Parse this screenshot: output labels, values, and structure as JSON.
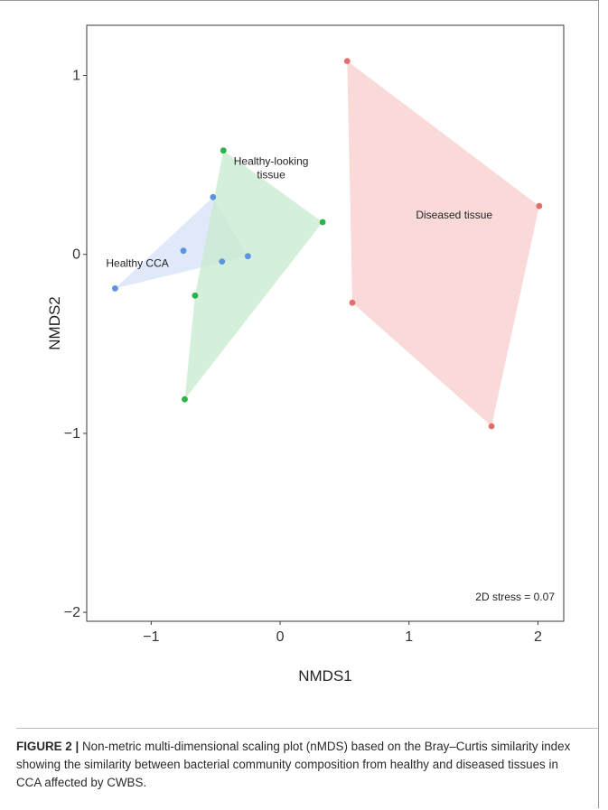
{
  "chart_data": {
    "type": "scatter",
    "xlabel": "NMDS1",
    "ylabel": "NMDS2",
    "xlim": [
      -1.5,
      2.2
    ],
    "ylim": [
      -2.05,
      1.28
    ],
    "xticks": [
      -1,
      0,
      1,
      2
    ],
    "yticks": [
      -2,
      -1,
      0,
      1
    ],
    "xtick_labels": [
      "−1",
      "0",
      "1",
      "2"
    ],
    "ytick_labels": [
      "−2",
      "−1",
      "0",
      "1"
    ],
    "grid": false,
    "legend": "none",
    "annotation": "2D stress = 0.07",
    "groups": [
      {
        "name": "Healthy CCA",
        "color": "#5b93e0",
        "hull_fill": "#d6e3f8",
        "points": [
          [
            -1.28,
            -0.19
          ],
          [
            -0.75,
            0.02
          ],
          [
            -0.52,
            0.32
          ],
          [
            -0.45,
            -0.04
          ],
          [
            -0.25,
            -0.01
          ]
        ],
        "hull": [
          [
            -1.28,
            -0.19
          ],
          [
            -0.52,
            0.32
          ],
          [
            -0.25,
            -0.01
          ]
        ]
      },
      {
        "name": "Healthy-looking tissue",
        "color": "#2bb34a",
        "hull_fill": "#c9ecd0",
        "points": [
          [
            -0.44,
            0.58
          ],
          [
            0.33,
            0.18
          ],
          [
            -0.66,
            -0.23
          ],
          [
            -0.74,
            -0.81
          ]
        ],
        "hull": [
          [
            -0.44,
            0.58
          ],
          [
            0.33,
            0.18
          ],
          [
            -0.74,
            -0.81
          ],
          [
            -0.66,
            -0.23
          ]
        ]
      },
      {
        "name": "Diseased tissue",
        "color": "#e46e6a",
        "hull_fill": "#f8d0ce",
        "points": [
          [
            0.52,
            1.08
          ],
          [
            2.01,
            0.27
          ],
          [
            0.56,
            -0.27
          ],
          [
            1.64,
            -0.96
          ]
        ],
        "hull": [
          [
            0.52,
            1.08
          ],
          [
            2.01,
            0.27
          ],
          [
            1.64,
            -0.96
          ],
          [
            0.56,
            -0.27
          ]
        ]
      }
    ],
    "group_labels": [
      {
        "text": "Healthy CCA",
        "anchor": "start",
        "x": -1.35,
        "y": -0.07,
        "lines": [
          "Healthy CCA"
        ]
      },
      {
        "text": "Healthy-looking tissue",
        "anchor": "middle",
        "x": -0.07,
        "y": 0.5,
        "lines": [
          "Healthy-looking",
          "tissue"
        ]
      },
      {
        "text": "Diseased tissue",
        "anchor": "middle",
        "x": 1.35,
        "y": 0.2,
        "lines": [
          "Diseased tissue"
        ]
      }
    ]
  },
  "caption": {
    "label": "FIGURE 2",
    "separator": "|",
    "text": "Non-metric multi-dimensional scaling plot (nMDS) based on the Bray–Curtis similarity index showing the similarity between bacterial community composition from healthy and diseased tissues in CCA affected by CWBS."
  }
}
